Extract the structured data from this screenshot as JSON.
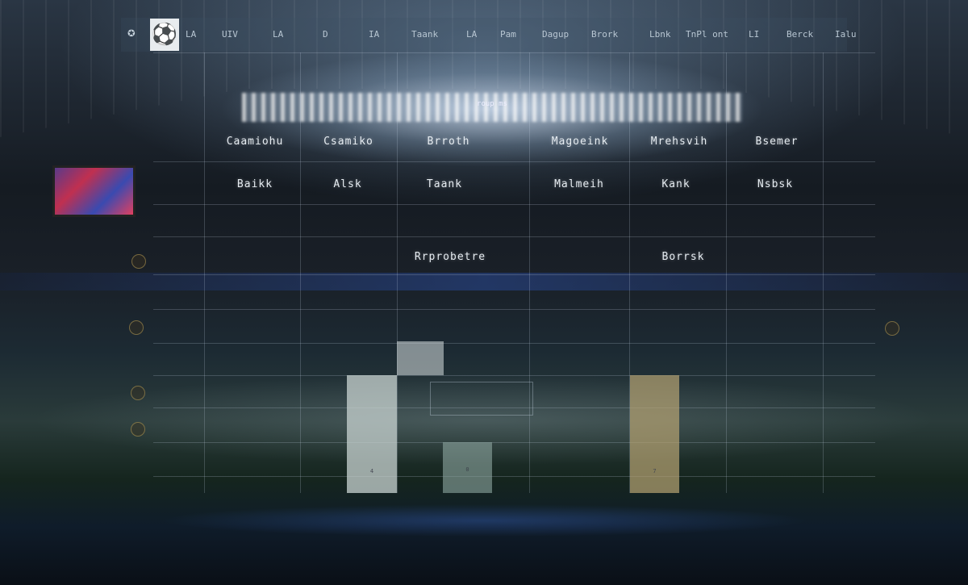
{
  "nav": {
    "items": [
      "LA",
      "UIV",
      "LA",
      "D",
      "IA",
      "Taank",
      "LA",
      "Pam",
      "Dagup",
      "Brork",
      "Lbnk",
      "TnPl ont",
      "LI",
      "Berck",
      "Ialu"
    ]
  },
  "banner": {
    "subtitle": "roup ms"
  },
  "grid": {
    "row1": [
      "Caamiohu",
      "Csamiko",
      "Brroth",
      "Magoeink",
      "Mrehsvih",
      "Bsemer"
    ],
    "row2": [
      "Baikk",
      "Alsk",
      "Taank",
      "Malmeih",
      "Kank",
      "Nsbsk"
    ],
    "row3": [
      "Rrprobetre",
      "Borrsk"
    ]
  },
  "bars": [
    {
      "color": "#c9d4d2",
      "label": "4"
    },
    {
      "color": "#d9e0e0",
      "label": ""
    },
    {
      "color": "#8fa8a2",
      "label": "0"
    },
    {
      "color": "#b7a473",
      "label": "7"
    }
  ],
  "icons": {
    "logo": "soccer-ball-icon",
    "emblem": "star-emblem-icon"
  }
}
